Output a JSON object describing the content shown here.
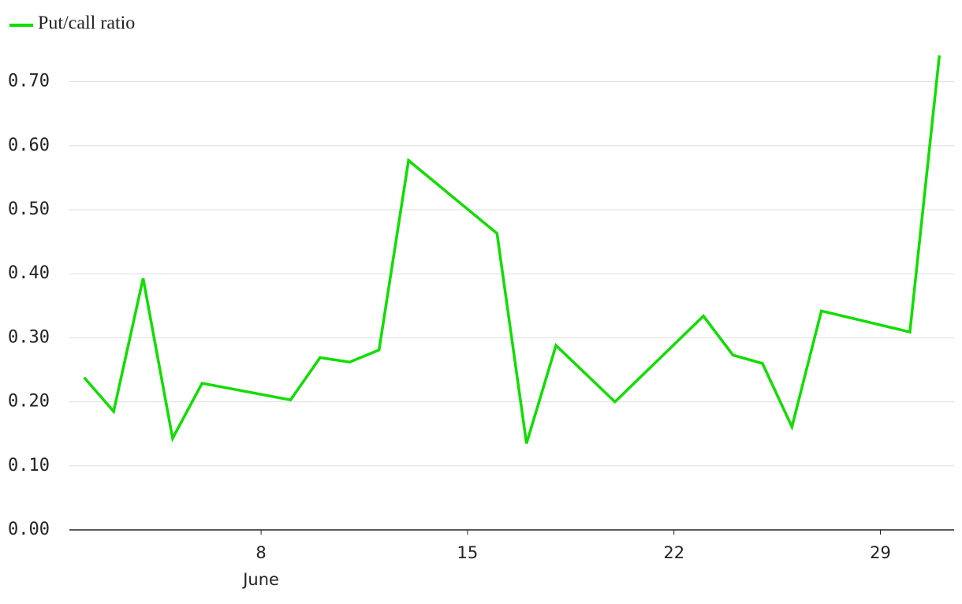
{
  "chart_data": {
    "type": "line",
    "xlabel": "June",
    "x": [
      2,
      3,
      4,
      5,
      6,
      9,
      10,
      11,
      12,
      13,
      16,
      17,
      18,
      20,
      23,
      24,
      25,
      26,
      27,
      30,
      31
    ],
    "series": [
      {
        "name": "Put/call ratio",
        "color": "#11dd00",
        "values": [
          0.238,
          0.185,
          0.393,
          0.143,
          0.229,
          0.203,
          0.269,
          0.262,
          0.281,
          0.577,
          0.463,
          0.135,
          0.288,
          0.2,
          0.334,
          0.273,
          0.26,
          0.161,
          0.342,
          0.309,
          0.741
        ]
      }
    ],
    "xlim": [
      1.5,
      31.5
    ],
    "xticks": [
      8,
      15,
      22,
      29
    ],
    "ylim": [
      0,
      0.75
    ],
    "yticks": [
      {
        "value": 0,
        "label": "0.00"
      },
      {
        "value": 0.1,
        "label": "0.10"
      },
      {
        "value": 0.2,
        "label": "0.20"
      },
      {
        "value": 0.3,
        "label": "0.30"
      },
      {
        "value": 0.4,
        "label": "0.40"
      },
      {
        "value": 0.5,
        "label": "0.50"
      },
      {
        "value": 0.6,
        "label": "0.60"
      },
      {
        "value": 0.7,
        "label": "0.70"
      }
    ],
    "grid": true,
    "legend": "top-left"
  }
}
